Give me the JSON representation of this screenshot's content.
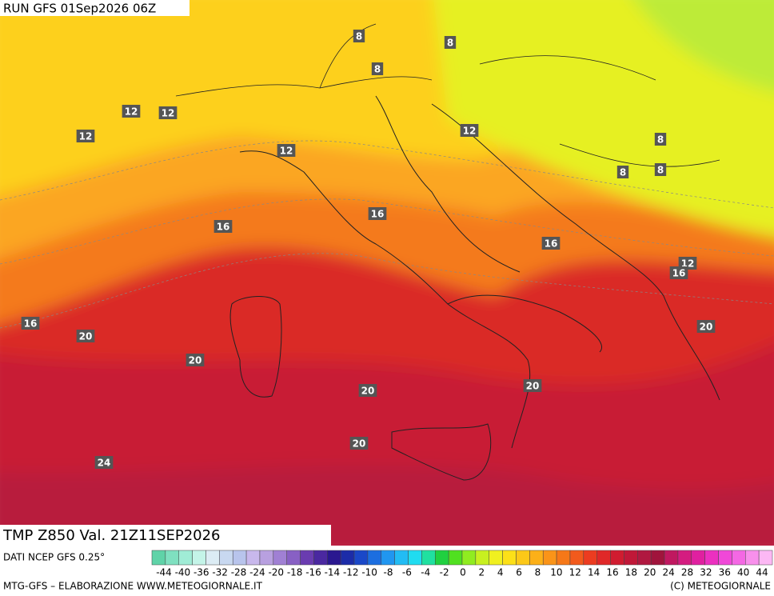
{
  "header": {
    "run": "RUN GFS 01Sep2026 06Z"
  },
  "contour_labels": [
    8,
    8,
    8,
    8,
    8,
    8,
    12,
    12,
    12,
    12,
    12,
    12,
    16,
    16,
    16,
    16,
    16,
    20,
    20,
    20,
    20,
    20,
    20,
    24
  ],
  "product": "TMP Z850 Val. 21Z11SEP2026",
  "colorbar": {
    "source": "DATI NCEP GFS 0.25°",
    "labels": [
      -44,
      -40,
      -36,
      -32,
      -28,
      -24,
      -20,
      -18,
      -16,
      -14,
      -12,
      -10,
      -8,
      -6,
      -4,
      -2,
      0,
      2,
      4,
      6,
      8,
      10,
      12,
      14,
      16,
      18,
      20,
      24,
      28,
      32,
      36,
      40,
      44
    ],
    "colors": [
      "#5fd3a8",
      "#7fe0c0",
      "#a0ecd6",
      "#c4f4e8",
      "#dcecf4",
      "#c8d8f0",
      "#b8c4ec",
      "#c8b8ec",
      "#b8a0e0",
      "#a080d4",
      "#8860c4",
      "#6a3cb0",
      "#4a28a0",
      "#2a1890",
      "#1c2ca8",
      "#1a48c8",
      "#1c6ee0",
      "#2096f0",
      "#22bcf4",
      "#20dcf0",
      "#20e0a0",
      "#20d040",
      "#50e020",
      "#90ec20",
      "#c8f020",
      "#f0f020",
      "#fce018",
      "#fcc818",
      "#fcb018",
      "#fa9418",
      "#f67818",
      "#f25a1c",
      "#ec3c20",
      "#e02828",
      "#d01c30",
      "#c01838",
      "#b01840",
      "#a0143c",
      "#c01860",
      "#d41c80",
      "#e020a0",
      "#ec30c0",
      "#f048d8",
      "#f468e4",
      "#f890ec",
      "#fcb8f4"
    ]
  },
  "credits": {
    "left": "MTG-GFS – ELABORAZIONE WWW.METEOGIORNALE.IT",
    "right": "(C) METEOGIORNALE"
  }
}
